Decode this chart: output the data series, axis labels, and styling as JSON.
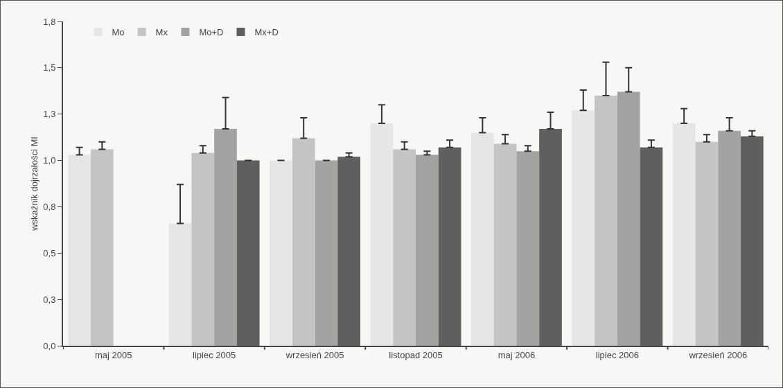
{
  "chart_data": {
    "type": "bar",
    "ylabel": "wskaźnik dojrzałości MI",
    "categories": [
      "maj 2005",
      "lipiec 2005",
      "wrzesień 2005",
      "listopad 2005",
      "maj 2006",
      "lipiec 2006",
      "wrzesień 2006"
    ],
    "series": [
      {
        "name": "Mo",
        "color": "#e6e6e4",
        "values": [
          1.03,
          0.66,
          1.0,
          1.2,
          1.15,
          1.27,
          1.2
        ],
        "errors": [
          0.04,
          0.21,
          0,
          0.1,
          0.08,
          0.11,
          0.08
        ]
      },
      {
        "name": "Mx",
        "color": "#c4c4c2",
        "values": [
          1.06,
          1.04,
          1.12,
          1.06,
          1.09,
          1.35,
          1.1
        ],
        "errors": [
          0.04,
          0.04,
          0.11,
          0.04,
          0.05,
          0.18,
          0.04
        ]
      },
      {
        "name": "Mo+D",
        "color": "#a3a3a1",
        "values": [
          null,
          1.17,
          1.0,
          1.03,
          1.05,
          1.37,
          1.16
        ],
        "errors": [
          null,
          0.17,
          0,
          0.02,
          0.03,
          0.13,
          0.07
        ]
      },
      {
        "name": "Mx+D",
        "color": "#5f5f5f",
        "values": [
          null,
          1.0,
          1.02,
          1.07,
          1.17,
          1.07,
          1.13
        ],
        "errors": [
          null,
          0,
          0.02,
          0.04,
          0.09,
          0.04,
          0.03
        ]
      }
    ],
    "ylim": [
      0,
      1.75
    ],
    "yticks": [
      {
        "value": 0,
        "label": "0,0"
      },
      {
        "value": 0.25,
        "label": "0,3"
      },
      {
        "value": 0.5,
        "label": "0,5"
      },
      {
        "value": 0.75,
        "label": "0,8"
      },
      {
        "value": 1.0,
        "label": "1,0"
      },
      {
        "value": 1.25,
        "label": "1,3"
      },
      {
        "value": 1.5,
        "label": "1,5"
      },
      {
        "value": 1.75,
        "label": "1,8"
      }
    ],
    "grid": false,
    "legend": "top left"
  }
}
